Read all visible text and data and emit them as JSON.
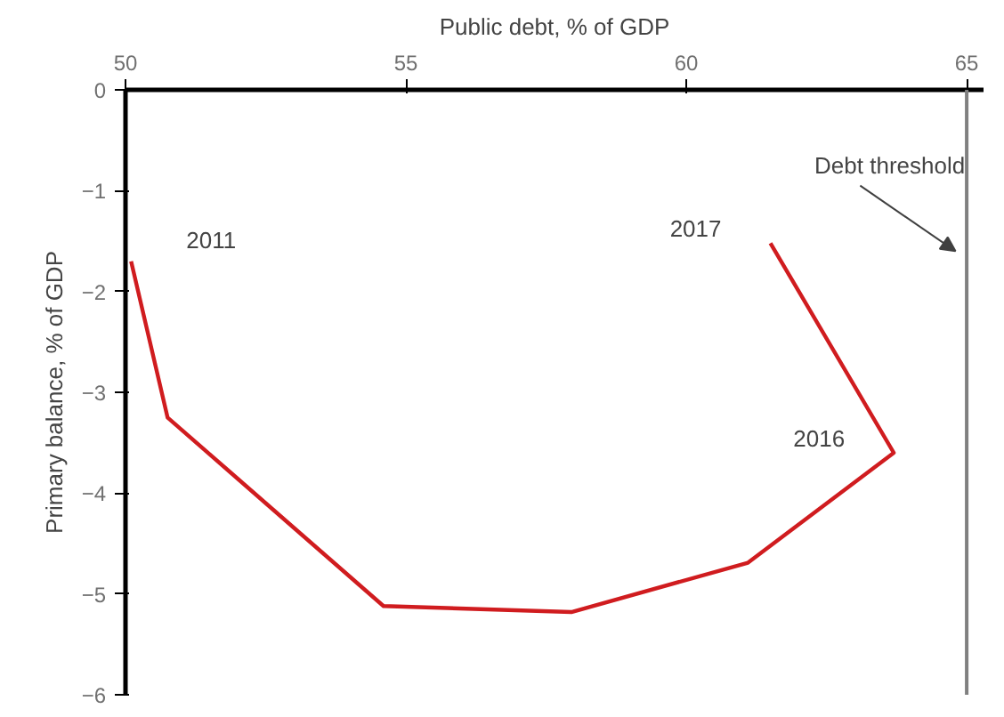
{
  "chart_data": {
    "type": "line",
    "xlabel": "Public debt, % of GDP",
    "ylabel": "Primary balance, % of GDP",
    "x": [
      50.1,
      50.75,
      54.6,
      57.95,
      61.1,
      63.7,
      61.5
    ],
    "series": [
      {
        "color": "#d01c1f",
        "values": [
          -1.7,
          -3.25,
          -5.12,
          -5.18,
          -4.69,
          -3.6,
          -1.52
        ]
      }
    ],
    "xlim": [
      50,
      65.3
    ],
    "ylim": [
      -6,
      0
    ],
    "xticks": [
      50,
      55,
      60,
      65
    ],
    "yticks": [
      0,
      -1,
      -2,
      -3,
      -4,
      -5,
      -6
    ],
    "ref_lines": [
      {
        "axis": "x",
        "value": 65,
        "label": "Debt threshold",
        "color": "#808080"
      }
    ],
    "annotations": [
      {
        "text": "2011",
        "x": 50.1,
        "y": -1.7
      },
      {
        "text": "2017",
        "x": 61.5,
        "y": -1.52
      },
      {
        "text": "2016",
        "x": 63.7,
        "y": -3.6
      }
    ],
    "grid": false,
    "marker": "none",
    "line_style": "solid"
  }
}
